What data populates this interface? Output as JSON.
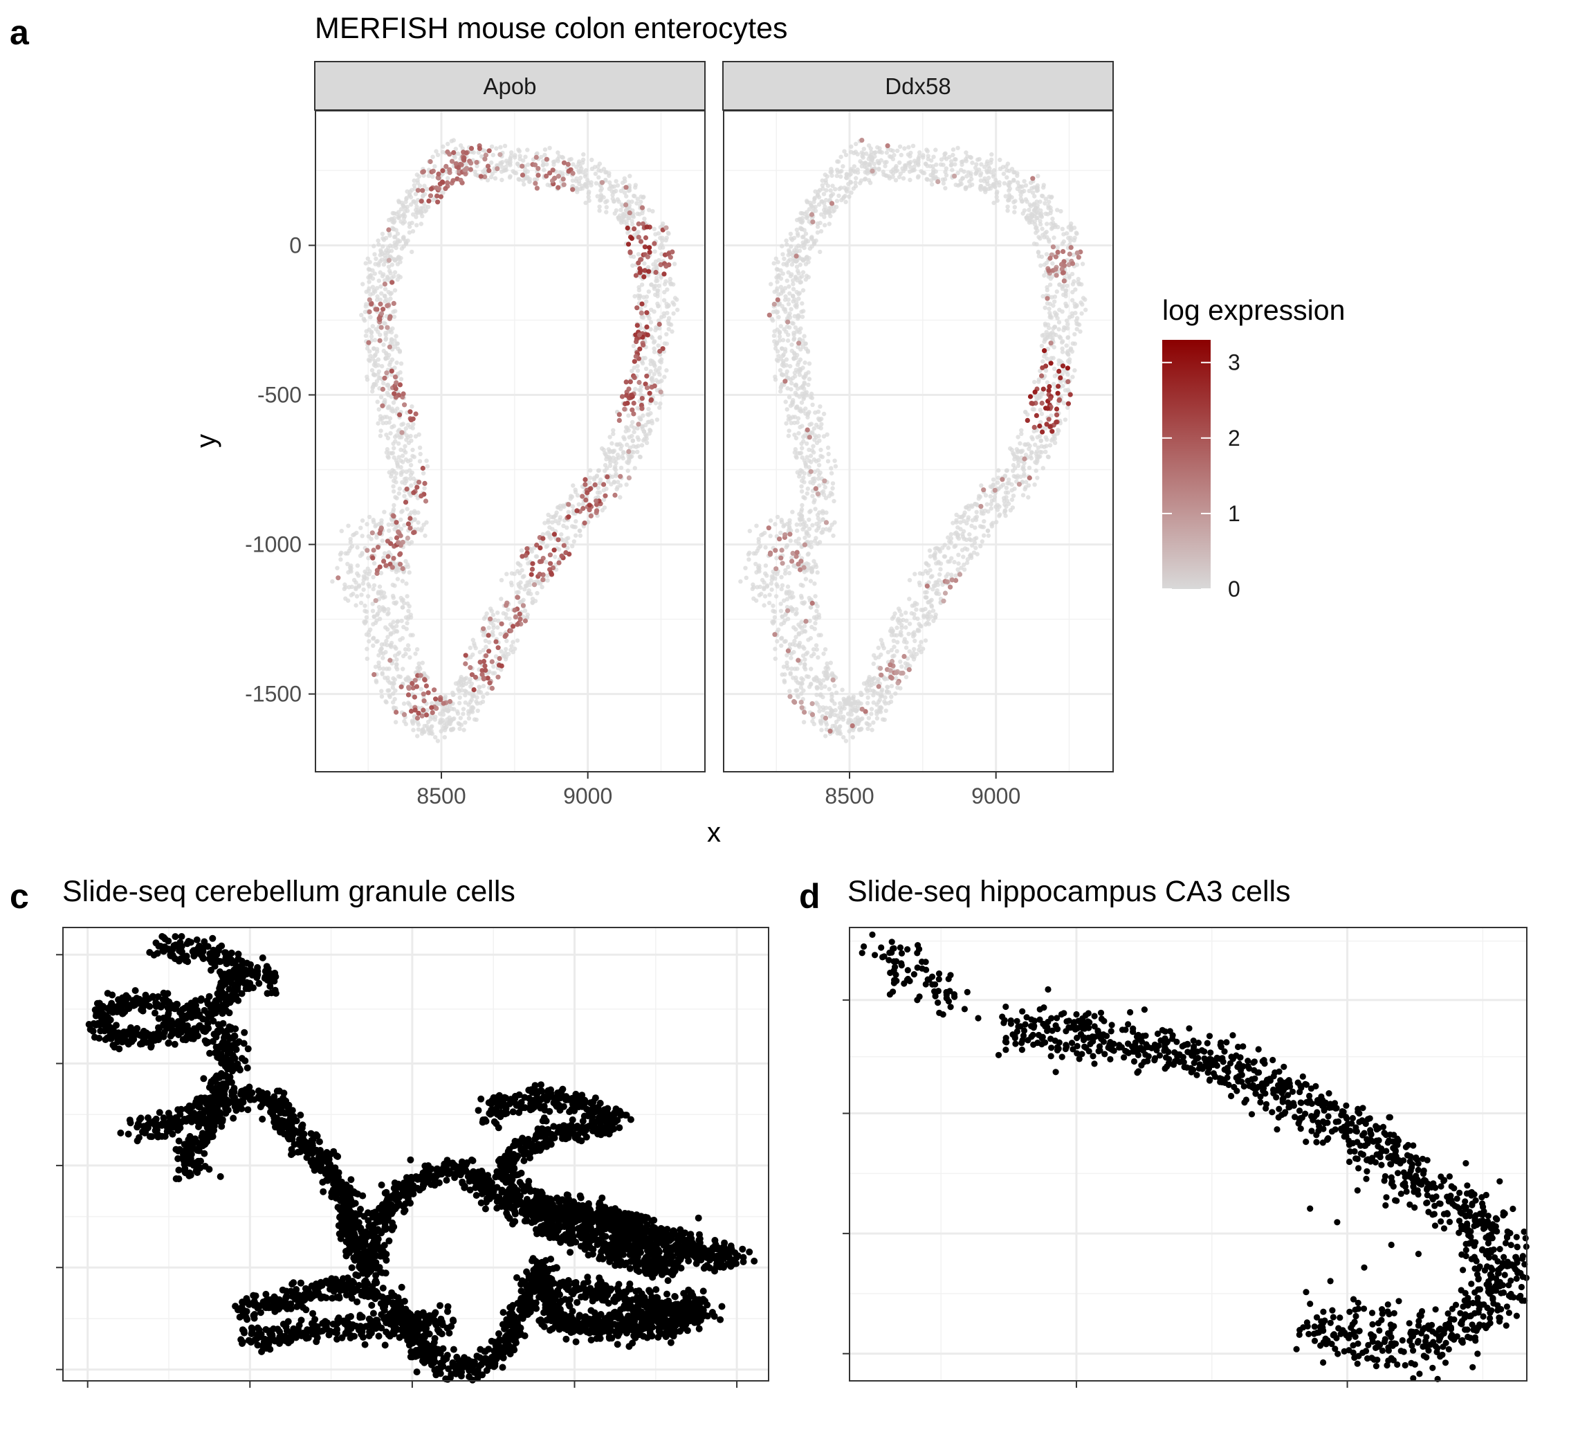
{
  "chart_data": [
    {
      "panel": "a",
      "type": "scatter",
      "title": "MERFISH mouse colon enterocytes",
      "facets": [
        "Apob",
        "Ddx58"
      ],
      "xlabel": "x",
      "ylabel": "y",
      "xlim": [
        8070,
        9400
      ],
      "ylim": [
        -1760,
        450
      ],
      "x_ticks": [
        8500,
        9000
      ],
      "x_tick_labels": [
        "8500",
        "9000"
      ],
      "y_ticks": [
        0,
        -500,
        -1000,
        -1500
      ],
      "y_tick_labels": [
        "0",
        "-500",
        "-1000",
        "-1500"
      ],
      "grid": true,
      "legend": {
        "title": "log expression",
        "position": "right",
        "range": [
          0,
          3.3
        ],
        "ticks": [
          3,
          2,
          1,
          0
        ],
        "tick_labels": [
          "3",
          "2",
          "1",
          "0"
        ],
        "low_color": "#d9d9d9",
        "high_color": "#8b0000"
      },
      "tissue_outline": {
        "outer": [
          [
            8560,
            350
          ],
          [
            8780,
            320
          ],
          [
            8960,
            300
          ],
          [
            9130,
            240
          ],
          [
            9290,
            30
          ],
          [
            9300,
            -200
          ],
          [
            9260,
            -480
          ],
          [
            9230,
            -600
          ],
          [
            9130,
            -800
          ],
          [
            9000,
            -950
          ],
          [
            8880,
            -1090
          ],
          [
            8770,
            -1300
          ],
          [
            8680,
            -1460
          ],
          [
            8620,
            -1580
          ],
          [
            8530,
            -1650
          ],
          [
            8410,
            -1640
          ],
          [
            8310,
            -1560
          ],
          [
            8260,
            -1420
          ],
          [
            8240,
            -1260
          ],
          [
            8130,
            -1130
          ],
          [
            8170,
            -950
          ],
          [
            8320,
            -890
          ],
          [
            8320,
            -700
          ],
          [
            8250,
            -420
          ],
          [
            8230,
            -250
          ],
          [
            8250,
            -50
          ],
          [
            8360,
            150
          ],
          [
            8440,
            280
          ]
        ],
        "inner": [
          [
            8580,
            230
          ],
          [
            8780,
            210
          ],
          [
            8960,
            180
          ],
          [
            9100,
            90
          ],
          [
            9170,
            -90
          ],
          [
            9160,
            -300
          ],
          [
            9130,
            -500
          ],
          [
            9060,
            -680
          ],
          [
            8950,
            -820
          ],
          [
            8810,
            -980
          ],
          [
            8690,
            -1150
          ],
          [
            8600,
            -1350
          ],
          [
            8560,
            -1450
          ],
          [
            8500,
            -1510
          ],
          [
            8440,
            -1430
          ],
          [
            8400,
            -1250
          ],
          [
            8380,
            -1080
          ],
          [
            8460,
            -880
          ],
          [
            8440,
            -660
          ],
          [
            8360,
            -430
          ],
          [
            8340,
            -240
          ],
          [
            8360,
            -50
          ],
          [
            8440,
            110
          ]
        ]
      },
      "series": [
        {
          "name": "Apob",
          "hotspots": [
            {
              "x": 8480,
              "y": 200,
              "r": 90,
              "value": 2.0
            },
            {
              "x": 8600,
              "y": 250,
              "r": 120,
              "value": 1.8
            },
            {
              "x": 8870,
              "y": 230,
              "r": 100,
              "value": 1.9
            },
            {
              "x": 9180,
              "y": -20,
              "r": 130,
              "value": 2.6
            },
            {
              "x": 9150,
              "y": -300,
              "r": 120,
              "value": 2.4
            },
            {
              "x": 9130,
              "y": -500,
              "r": 110,
              "value": 2.3
            },
            {
              "x": 9000,
              "y": -850,
              "r": 110,
              "value": 2.2
            },
            {
              "x": 8850,
              "y": -1050,
              "r": 120,
              "value": 2.3
            },
            {
              "x": 8730,
              "y": -1250,
              "r": 100,
              "value": 2.0
            },
            {
              "x": 8650,
              "y": -1420,
              "r": 90,
              "value": 2.2
            },
            {
              "x": 8430,
              "y": -1500,
              "r": 110,
              "value": 2.0
            },
            {
              "x": 8400,
              "y": -500,
              "r": 110,
              "value": 2.0
            },
            {
              "x": 8460,
              "y": -820,
              "r": 100,
              "value": 2.1
            },
            {
              "x": 8330,
              "y": -1000,
              "r": 110,
              "value": 1.9
            },
            {
              "x": 8320,
              "y": -200,
              "r": 90,
              "value": 1.8
            }
          ]
        },
        {
          "name": "Ddx58",
          "hotspots": [
            {
              "x": 9130,
              "y": -430,
              "r": 120,
              "value": 2.9
            },
            {
              "x": 9180,
              "y": -560,
              "r": 100,
              "value": 2.7
            },
            {
              "x": 9230,
              "y": -50,
              "r": 80,
              "value": 1.6
            },
            {
              "x": 8270,
              "y": -1020,
              "r": 90,
              "value": 1.4
            },
            {
              "x": 8880,
              "y": -1150,
              "r": 80,
              "value": 1.2
            },
            {
              "x": 8660,
              "y": -1420,
              "r": 70,
              "value": 1.3
            },
            {
              "x": 8330,
              "y": -1550,
              "r": 60,
              "value": 1.3
            }
          ]
        }
      ]
    },
    {
      "panel": "c",
      "type": "scatter",
      "title": "Slide-seq cerebellum granule cells",
      "xlim": [
        0,
        100
      ],
      "ylim": [
        0,
        100
      ],
      "x_ticks": [
        3.5,
        26.5,
        49.5,
        72.5,
        95.5
      ],
      "y_ticks": [
        2.5,
        25,
        47.5,
        70,
        94
      ],
      "grid": true,
      "color": "#000000",
      "paths": [
        [
          [
            13.5,
            96
          ],
          [
            17,
            95
          ],
          [
            20.5,
            95
          ],
          [
            23,
            93
          ],
          [
            24,
            89
          ],
          [
            23,
            85
          ],
          [
            21,
            82
          ],
          [
            19,
            81
          ],
          [
            17,
            82
          ],
          [
            13,
            83
          ],
          [
            9,
            83
          ],
          [
            7,
            82
          ]
        ],
        [
          [
            24,
            91
          ],
          [
            27,
            90
          ],
          [
            30,
            87
          ]
        ],
        [
          [
            7,
            82
          ],
          [
            5,
            78
          ],
          [
            7.5,
            75
          ],
          [
            11,
            76
          ],
          [
            15,
            77
          ],
          [
            19,
            78
          ],
          [
            23,
            76
          ],
          [
            24,
            70
          ],
          [
            21,
            62
          ],
          [
            17,
            57
          ],
          [
            13,
            56
          ],
          [
            10,
            55
          ]
        ],
        [
          [
            18,
            46
          ],
          [
            18.5,
            50
          ],
          [
            20,
            55
          ],
          [
            22,
            60
          ],
          [
            26,
            63
          ],
          [
            29,
            62
          ],
          [
            31,
            59
          ],
          [
            34,
            52
          ],
          [
            38,
            47
          ],
          [
            40,
            41
          ],
          [
            41,
            33
          ],
          [
            42,
            28
          ],
          [
            43.5,
            25
          ]
        ],
        [
          [
            43.5,
            25
          ],
          [
            44.5,
            33
          ],
          [
            47,
            41
          ],
          [
            51,
            45
          ],
          [
            55,
            47
          ],
          [
            57,
            46
          ],
          [
            59,
            43
          ],
          [
            62,
            39
          ],
          [
            66,
            37
          ],
          [
            70,
            36
          ],
          [
            74,
            35
          ],
          [
            79,
            32
          ],
          [
            82,
            29
          ],
          [
            87,
            25
          ]
        ],
        [
          [
            25,
            16
          ],
          [
            29,
            17
          ],
          [
            33,
            18
          ],
          [
            37,
            20
          ],
          [
            40,
            21
          ],
          [
            43,
            20
          ],
          [
            46,
            18
          ],
          [
            48,
            14
          ],
          [
            50,
            9
          ],
          [
            52,
            5
          ],
          [
            54,
            3
          ],
          [
            57,
            3
          ],
          [
            59,
            3
          ],
          [
            61,
            4
          ],
          [
            63,
            8
          ],
          [
            64,
            13
          ],
          [
            66,
            19
          ],
          [
            68,
            25
          ]
        ],
        [
          [
            26,
            9
          ],
          [
            30,
            10
          ],
          [
            34,
            11
          ],
          [
            38,
            12
          ],
          [
            41,
            12
          ],
          [
            43,
            11
          ],
          [
            46,
            12
          ],
          [
            51,
            13
          ],
          [
            55,
            13
          ]
        ],
        [
          [
            60,
            58
          ],
          [
            62,
            61
          ],
          [
            66,
            62
          ],
          [
            71,
            62
          ],
          [
            75,
            61
          ],
          [
            78,
            58
          ],
          [
            76,
            56
          ],
          [
            72,
            55
          ],
          [
            68,
            54
          ],
          [
            65,
            51
          ],
          [
            63,
            46
          ],
          [
            64,
            41
          ]
        ],
        [
          [
            64,
            41
          ],
          [
            66,
            39
          ],
          [
            70,
            38
          ],
          [
            74,
            37
          ],
          [
            78,
            35
          ],
          [
            82,
            33
          ],
          [
            86,
            31
          ],
          [
            90,
            29
          ],
          [
            94,
            28
          ]
        ],
        [
          [
            67,
            39
          ],
          [
            72,
            38
          ],
          [
            78,
            36
          ],
          [
            84,
            32
          ],
          [
            90,
            28
          ],
          [
            96,
            27
          ]
        ],
        [
          [
            68,
            33
          ],
          [
            71,
            33
          ],
          [
            76,
            30
          ],
          [
            80,
            27
          ],
          [
            83,
            26
          ],
          [
            85,
            24
          ]
        ],
        [
          [
            68,
            26
          ],
          [
            69,
            19
          ],
          [
            70,
            14
          ],
          [
            73,
            12
          ],
          [
            78,
            13
          ],
          [
            83,
            14
          ],
          [
            88,
            15
          ],
          [
            91,
            17
          ]
        ],
        [
          [
            70,
            20
          ],
          [
            74,
            20
          ],
          [
            80,
            18
          ],
          [
            86,
            17
          ],
          [
            90,
            18
          ]
        ],
        [
          [
            69,
            13
          ],
          [
            75,
            12
          ],
          [
            81,
            11
          ],
          [
            86,
            12
          ],
          [
            91,
            15
          ]
        ]
      ]
    },
    {
      "panel": "d",
      "type": "scatter",
      "title": "Slide-seq hippocampus CA3 cells",
      "xlim": [
        0,
        100
      ],
      "ylim": [
        0,
        100
      ],
      "x_ticks": [
        33.5,
        73.5
      ],
      "y_ticks": [
        6,
        32.5,
        59,
        84
      ],
      "grid": true,
      "color": "#000000",
      "paths": [
        [
          [
            4.5,
            96
          ],
          [
            7,
            93
          ],
          [
            9,
            90
          ],
          [
            12,
            87
          ],
          [
            15,
            84
          ]
        ],
        [
          [
            23,
            79
          ],
          [
            30,
            77
          ],
          [
            38,
            75
          ],
          [
            46,
            73
          ],
          [
            53,
            71
          ],
          [
            60,
            67
          ],
          [
            66,
            63
          ],
          [
            71,
            59
          ],
          [
            76,
            55
          ],
          [
            81,
            49
          ],
          [
            85,
            44
          ]
        ],
        [
          [
            24,
            77
          ],
          [
            34,
            76
          ],
          [
            44,
            74
          ],
          [
            52,
            71
          ],
          [
            59,
            67
          ],
          [
            64,
            63
          ],
          [
            70,
            58
          ],
          [
            75,
            54
          ],
          [
            80,
            47
          ],
          [
            84,
            42
          ],
          [
            89,
            40
          ]
        ],
        [
          [
            89,
            40
          ],
          [
            93,
            37
          ],
          [
            96,
            34
          ],
          [
            98,
            29
          ],
          [
            98,
            23
          ],
          [
            96,
            17
          ],
          [
            93,
            13
          ],
          [
            90,
            10
          ],
          [
            87,
            8
          ],
          [
            82,
            7
          ],
          [
            77,
            8
          ],
          [
            73,
            9
          ],
          [
            70,
            10
          ],
          [
            67,
            11
          ]
        ],
        [
          [
            88,
            38
          ],
          [
            92,
            33
          ],
          [
            94,
            28
          ],
          [
            95,
            24
          ],
          [
            93,
            19
          ],
          [
            91,
            15
          ],
          [
            88,
            13
          ],
          [
            84,
            11
          ],
          [
            79,
            10
          ],
          [
            75,
            11
          ],
          [
            71,
            12
          ]
        ]
      ],
      "scatter_extra": [
        [
          6,
          90
        ],
        [
          10,
          84
        ],
        [
          17,
          82
        ],
        [
          19,
          80
        ],
        [
          68,
          38
        ],
        [
          72,
          35
        ],
        [
          75,
          42
        ],
        [
          80,
          30
        ],
        [
          84,
          28
        ],
        [
          76,
          25
        ],
        [
          71,
          22
        ],
        [
          68,
          17
        ],
        [
          69,
          14
        ],
        [
          66,
          7
        ],
        [
          80,
          5
        ],
        [
          88,
          4
        ],
        [
          92,
          3
        ],
        [
          96,
          44
        ],
        [
          91,
          48
        ],
        [
          94,
          41
        ]
      ]
    }
  ],
  "panel_labels": {
    "a": "a",
    "c": "c",
    "d": "d"
  },
  "colors": {
    "grid": "#ebebeb",
    "strip_bg": "#d9d9d9",
    "frame": "#333333",
    "point": "#000000"
  }
}
